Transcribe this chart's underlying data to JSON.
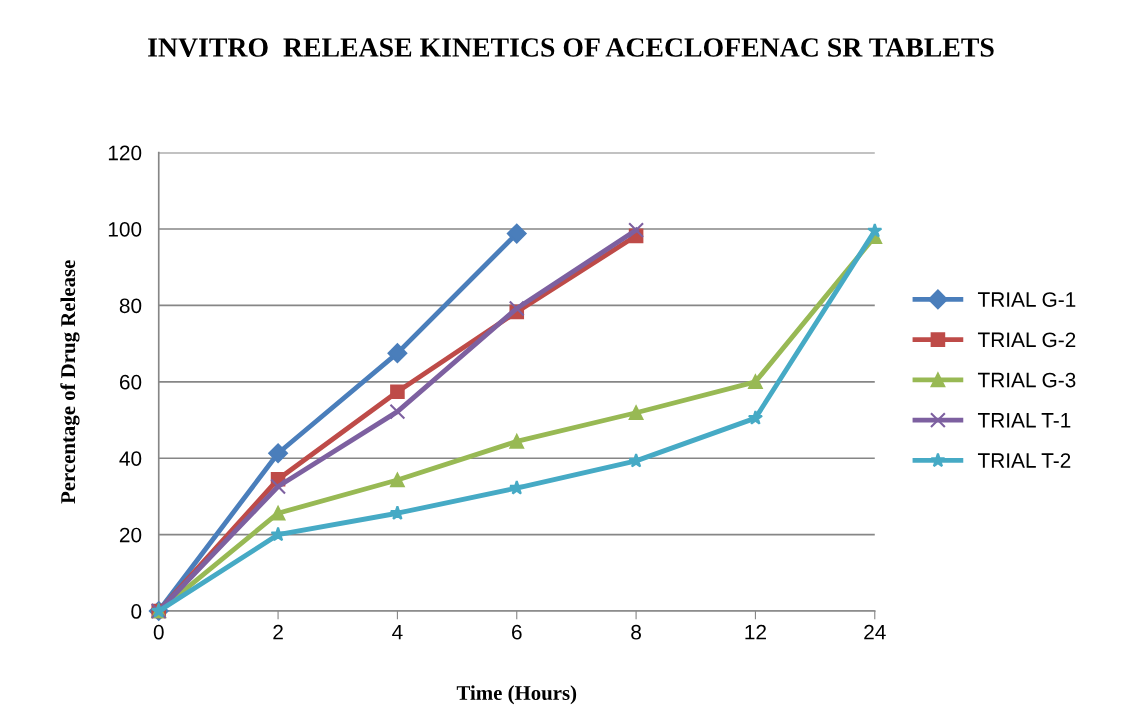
{
  "chart_data": {
    "type": "line",
    "title": "INVITRO  RELEASE KINETICS OF ACECLOFENAC SR TABLETS",
    "xlabel": "Time (Hours)",
    "ylabel": "Percentage of Drug Release",
    "categories": [
      "0",
      "2",
      "4",
      "6",
      "8",
      "12",
      "24"
    ],
    "series": [
      {
        "name": "TRIAL G-1",
        "color": "#4a7ebb",
        "marker": "diamond",
        "values": [
          0,
          41.3,
          67.5,
          98.8,
          null,
          null,
          null
        ]
      },
      {
        "name": "TRIAL G-2",
        "color": "#be4b48",
        "marker": "square",
        "values": [
          0,
          34.5,
          57.4,
          78.3,
          98.2,
          null,
          null
        ]
      },
      {
        "name": "TRIAL G-3",
        "color": "#98b954",
        "marker": "triangle",
        "values": [
          0,
          25.6,
          34.3,
          44.4,
          51.9,
          60.0,
          98.0
        ]
      },
      {
        "name": "TRIAL T-1",
        "color": "#7d60a0",
        "marker": "cross",
        "values": [
          0,
          32.6,
          52.2,
          79.2,
          99.7,
          null,
          null
        ]
      },
      {
        "name": "TRIAL T-2",
        "color": "#46aac5",
        "marker": "star",
        "values": [
          0,
          20.0,
          25.6,
          32.2,
          39.3,
          50.5,
          99.5
        ]
      }
    ],
    "ylim": [
      0,
      120
    ],
    "yticks": [
      0,
      20,
      40,
      60,
      80,
      100,
      120
    ],
    "grid": "y",
    "legend": "right",
    "line_style": "solid"
  }
}
